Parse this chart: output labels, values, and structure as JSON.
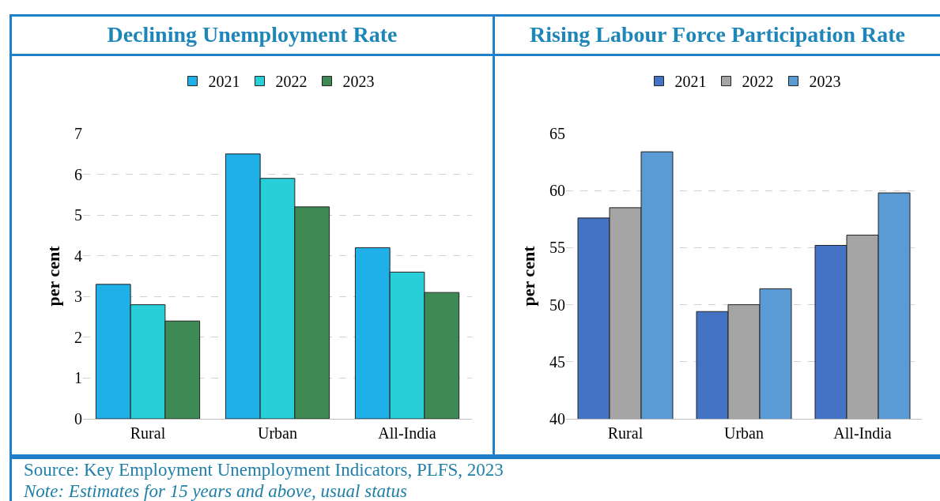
{
  "chart_data": [
    {
      "type": "bar",
      "title": "Declining Unemployment Rate",
      "ylabel": "per cent",
      "categories": [
        "Rural",
        "Urban",
        "All-India"
      ],
      "series": [
        {
          "name": "2021",
          "color": "#1eb0e6",
          "values": [
            3.3,
            6.5,
            4.2
          ]
        },
        {
          "name": "2022",
          "color": "#29cfd8",
          "values": [
            2.8,
            5.9,
            3.6
          ]
        },
        {
          "name": "2023",
          "color": "#3e8a55",
          "values": [
            2.4,
            5.2,
            3.1
          ]
        }
      ],
      "ylim": [
        0,
        7
      ],
      "yticks": [
        0,
        1,
        2,
        3,
        4,
        5,
        6,
        7
      ],
      "grid": "y",
      "legend": "top",
      "annotations": [
        "Source: Key Employment Unemployment Indicators, PLFS, 2023",
        "Note: Estimates for 15 years and above, usual status"
      ]
    },
    {
      "type": "bar",
      "title": "Rising Labour Force Participation Rate",
      "ylabel": "per cent",
      "categories": [
        "Rural",
        "Urban",
        "All-India"
      ],
      "series": [
        {
          "name": "2021",
          "color": "#4472c4",
          "values": [
            57.6,
            49.4,
            55.2
          ]
        },
        {
          "name": "2022",
          "color": "#a5a5a5",
          "values": [
            58.5,
            50.0,
            56.1
          ]
        },
        {
          "name": "2023",
          "color": "#5b9bd5",
          "values": [
            63.4,
            51.4,
            59.8
          ]
        }
      ],
      "ylim": [
        40,
        65
      ],
      "yticks": [
        40,
        45,
        50,
        55,
        60,
        65
      ],
      "grid": "y",
      "legend": "top"
    }
  ]
}
